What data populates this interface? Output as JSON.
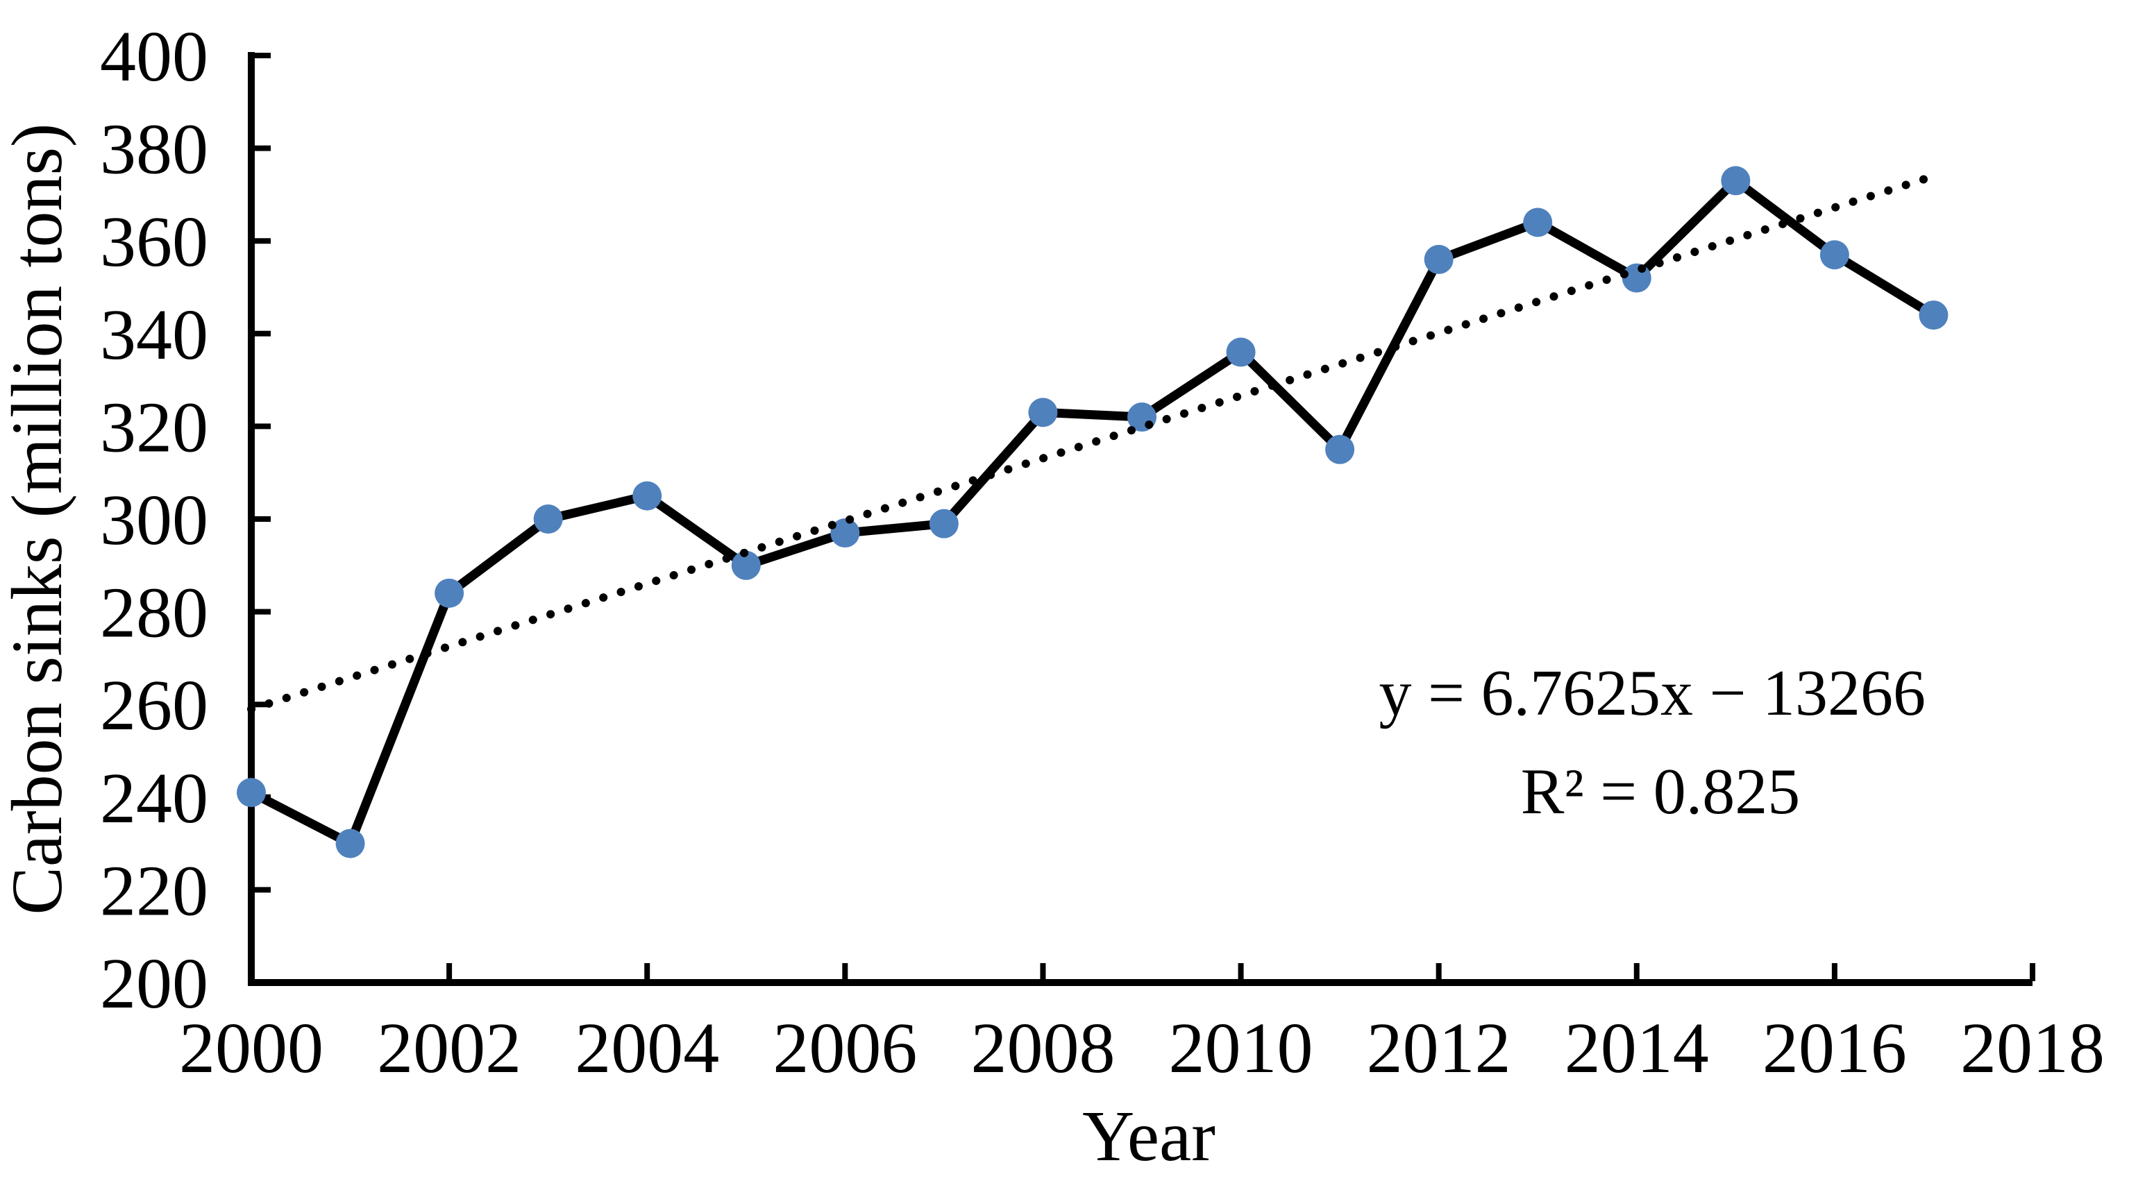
{
  "figure": {
    "background": "#ffffff",
    "axis_color": "#000000",
    "marker_color": "#4f81bd",
    "line_color": "#000000",
    "trendline_color": "#000000"
  },
  "chart_data": {
    "type": "line",
    "title": "",
    "xlabel": "Year",
    "ylabel": "Carbon sinks (million tons)",
    "xlim": [
      2000,
      2018
    ],
    "ylim": [
      200,
      400
    ],
    "x_ticks": [
      2000,
      2002,
      2004,
      2006,
      2008,
      2010,
      2012,
      2014,
      2016,
      2018
    ],
    "y_ticks": [
      200,
      220,
      240,
      260,
      280,
      300,
      320,
      340,
      360,
      380,
      400
    ],
    "grid": false,
    "legend": "none",
    "x": [
      2000,
      2001,
      2002,
      2003,
      2004,
      2005,
      2006,
      2007,
      2008,
      2009,
      2010,
      2011,
      2012,
      2013,
      2014,
      2015,
      2016,
      2017
    ],
    "series": [
      {
        "name": "Carbon sinks",
        "values": [
          241,
          230,
          284,
          300,
          305,
          290,
          297,
          299,
          323,
          322,
          336,
          315,
          356,
          364,
          352,
          373,
          357,
          344
        ],
        "marker": "circle",
        "marker_color": "#4f81bd",
        "line_color": "#000000",
        "line_style": "solid"
      }
    ],
    "trendline": {
      "style": "dotted",
      "slope": 6.7625,
      "intercept": -13266,
      "x_start": 2000,
      "x_end": 2017,
      "label_line1": "y = 6.7625x − 13266",
      "label_line2": "R² = 0.825"
    }
  }
}
